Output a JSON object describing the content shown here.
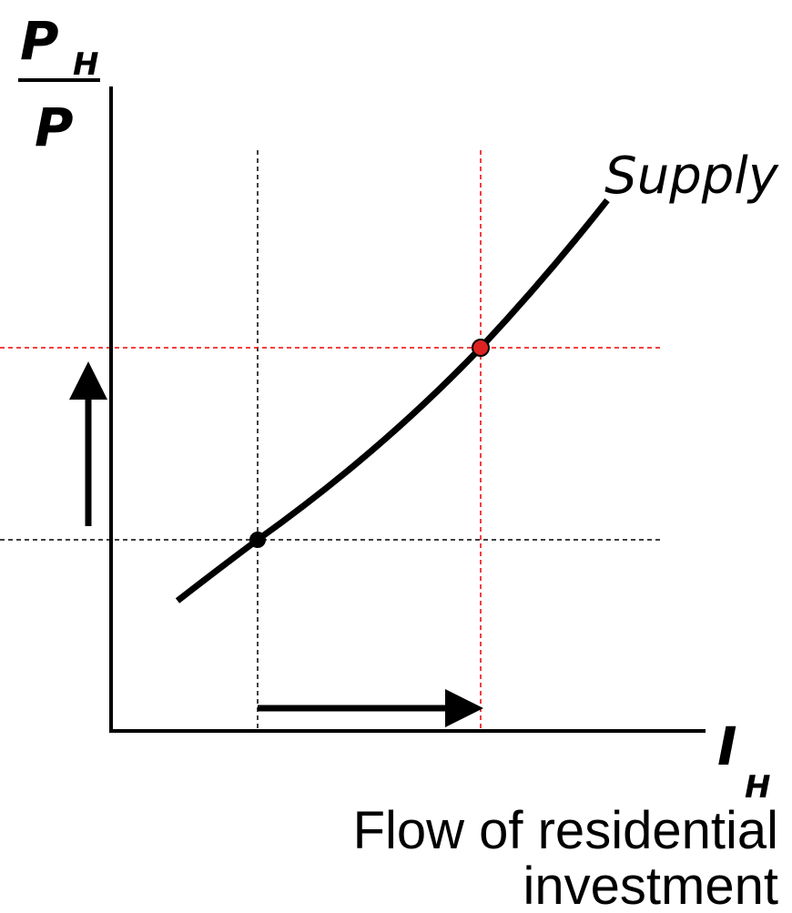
{
  "y_axis_label": {
    "numerator": "P",
    "numerator_subscript": "H",
    "denominator": "P"
  },
  "x_axis_label": {
    "symbol": "I",
    "subscript": "H"
  },
  "x_axis_caption": [
    "Flow of residential",
    "investment"
  ],
  "curve_label": "Supply"
}
